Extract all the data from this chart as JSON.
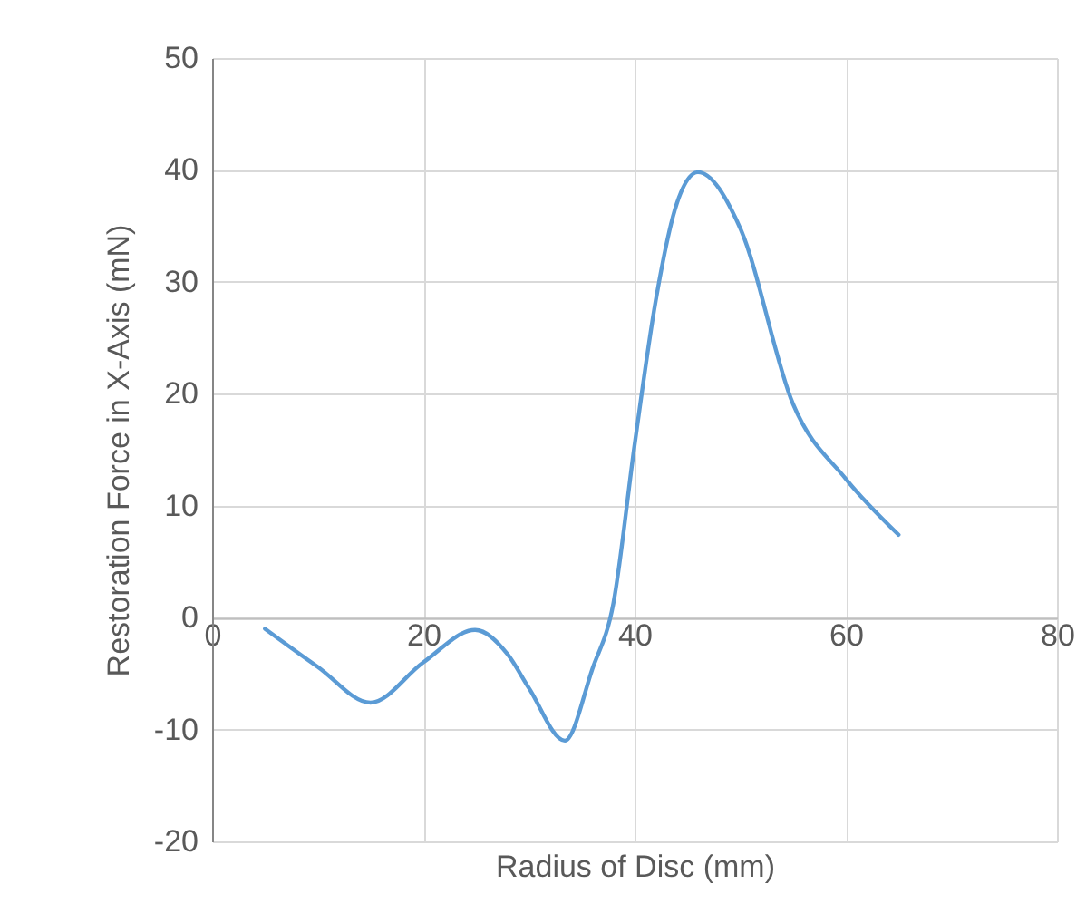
{
  "chart_data": {
    "type": "line",
    "xlabel": "Radius of Disc (mm)",
    "ylabel": "Restoration Force in X-Axis (mN)",
    "xlim": [
      0,
      80
    ],
    "xticks": [
      0,
      20,
      40,
      60,
      80
    ],
    "ylim": [
      -20,
      50
    ],
    "yticks": [
      -20,
      -10,
      0,
      10,
      20,
      30,
      40,
      50
    ],
    "grid": true,
    "marker": "none",
    "line_style": "solid",
    "series": [
      {
        "color": "#5b9bd5",
        "x": [
          5,
          10,
          15,
          20,
          24.9,
          28,
          30,
          33.4,
          36,
          38,
          40,
          42,
          44,
          46,
          50,
          55,
          60,
          65
        ],
        "values": [
          -1.0,
          -4.4,
          -7.6,
          -4.0,
          -1.1,
          -3.3,
          -6.3,
          -11.0,
          -4.6,
          1.3,
          15.4,
          28.3,
          37,
          39.8,
          34.8,
          19.1,
          12.4,
          7.4
        ]
      }
    ]
  }
}
